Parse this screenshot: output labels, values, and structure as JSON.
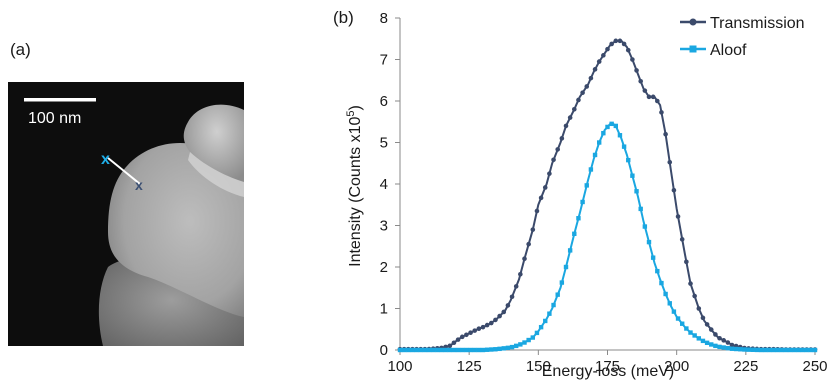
{
  "panel_a": {
    "label": "(a)",
    "scalebar_label": "100 nm",
    "markers": [
      {
        "symbol": "x",
        "color": "#1faee8"
      },
      {
        "symbol": "x",
        "color": "#3b4f72"
      }
    ]
  },
  "panel_b": {
    "label": "(b)"
  },
  "chart_data": {
    "type": "line",
    "xlabel": "Energy-loss (meV)",
    "ylabel": "Intensity (Counts x10",
    "ylabel_sup": "5",
    "ylabel_suffix": ")",
    "xlim": [
      100,
      250
    ],
    "ylim": [
      0,
      8
    ],
    "xticks": [
      100,
      125,
      150,
      175,
      200,
      225,
      250
    ],
    "yticks": [
      0,
      1,
      2,
      3,
      4,
      5,
      6,
      7,
      8
    ],
    "legend_position": "top-right",
    "grid": false,
    "series": [
      {
        "name": "Transmission",
        "color": "#3b4a6b",
        "marker": "circle",
        "x": [
          100,
          105,
          110,
          115,
          118,
          120,
          122,
          125,
          128,
          130,
          133,
          135,
          138,
          140,
          143,
          145,
          148,
          150,
          153,
          155,
          158,
          160,
          163,
          165,
          168,
          170,
          172,
          174,
          176,
          178,
          180,
          182,
          184,
          186,
          188,
          190,
          192,
          194,
          196,
          198,
          200,
          203,
          205,
          208,
          210,
          213,
          215,
          218,
          220,
          223,
          225,
          228,
          230,
          235,
          240,
          245,
          250
        ],
        "y": [
          0.02,
          0.02,
          0.02,
          0.05,
          0.1,
          0.2,
          0.3,
          0.4,
          0.5,
          0.55,
          0.65,
          0.75,
          0.95,
          1.2,
          1.7,
          2.2,
          2.9,
          3.5,
          4.0,
          4.5,
          5.0,
          5.4,
          5.8,
          6.1,
          6.4,
          6.7,
          6.95,
          7.15,
          7.35,
          7.45,
          7.45,
          7.3,
          7.0,
          6.65,
          6.3,
          6.1,
          6.1,
          5.9,
          5.2,
          4.3,
          3.4,
          2.3,
          1.6,
          1.0,
          0.7,
          0.45,
          0.3,
          0.2,
          0.12,
          0.07,
          0.04,
          0.03,
          0.02,
          0.02,
          0.01,
          0.01,
          0.01
        ]
      },
      {
        "name": "Aloof",
        "color": "#1aa7e1",
        "marker": "square",
        "x": [
          100,
          105,
          110,
          115,
          120,
          125,
          130,
          135,
          140,
          143,
          145,
          148,
          150,
          153,
          155,
          158,
          160,
          163,
          165,
          168,
          170,
          172,
          174,
          176,
          177,
          178,
          180,
          182,
          184,
          186,
          188,
          190,
          192,
          194,
          196,
          198,
          200,
          203,
          205,
          208,
          210,
          213,
          215,
          218,
          220,
          225,
          230,
          235,
          240,
          245,
          250
        ],
        "y": [
          0.0,
          0.0,
          0.0,
          0.0,
          0.0,
          0.0,
          0.0,
          0.02,
          0.06,
          0.12,
          0.18,
          0.3,
          0.45,
          0.75,
          1.0,
          1.5,
          2.0,
          2.8,
          3.3,
          4.1,
          4.6,
          5.0,
          5.3,
          5.45,
          5.45,
          5.4,
          5.1,
          4.7,
          4.2,
          3.7,
          3.1,
          2.6,
          2.1,
          1.7,
          1.35,
          1.05,
          0.8,
          0.55,
          0.42,
          0.28,
          0.2,
          0.12,
          0.08,
          0.05,
          0.03,
          0.01,
          0.0,
          0.0,
          0.0,
          0.0,
          0.0
        ]
      }
    ]
  }
}
